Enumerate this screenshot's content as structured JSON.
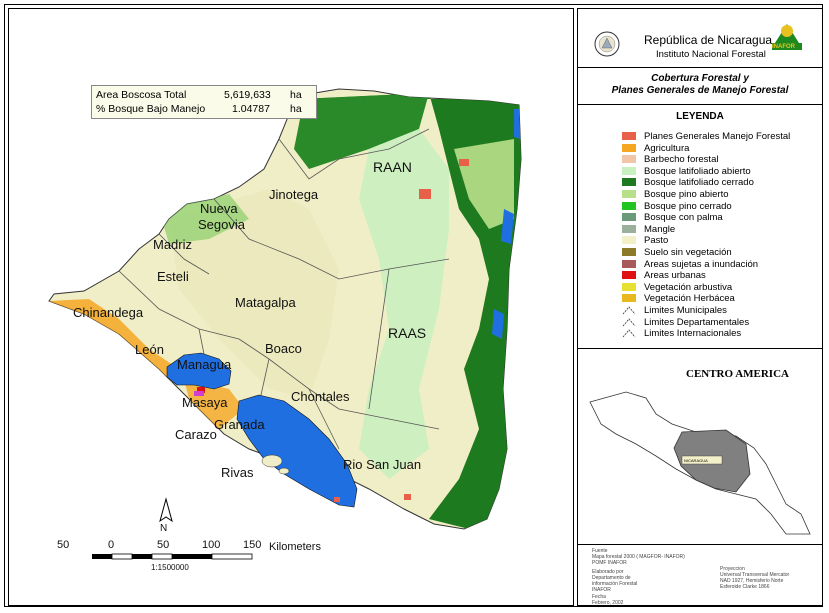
{
  "header": {
    "country": "República de Nicaragua",
    "institute": "Instituto Nacional Forestal",
    "logo_text": "INAFOR"
  },
  "subtitle": {
    "line1": "Cobertura Forestal y",
    "line2": "Planes Generales de Manejo Forestal"
  },
  "area_box": {
    "row1": {
      "label": "Area Boscosa Total",
      "value": "5,619,633",
      "unit": "ha"
    },
    "row2": {
      "label": "% Bosque Bajo Manejo",
      "value": "1.04787",
      "unit": "ha"
    }
  },
  "legend": {
    "title": "LEYENDA",
    "items": [
      {
        "label": "Planes Generales Manejo Forestal",
        "color": "#e8604a"
      },
      {
        "label": "Agricultura",
        "color": "#f5a623"
      },
      {
        "label": "Barbecho forestal",
        "color": "#f2c4a8"
      },
      {
        "label": "Bosque latifoliado abierto",
        "color": "#c8f0c0"
      },
      {
        "label": "Bosque latifoliado cerrado",
        "color": "#1e7a1e"
      },
      {
        "label": "Bosque pino abierto",
        "color": "#b8e08a"
      },
      {
        "label": "Bosque pino cerrado",
        "color": "#22c422"
      },
      {
        "label": "Bosque con palma",
        "color": "#6a9a7a"
      },
      {
        "label": "Mangle",
        "color": "#9ab09a"
      },
      {
        "label": "Pasto",
        "color": "#f2f0c8"
      },
      {
        "label": "Suelo sin vegetación",
        "color": "#8a7a2a"
      },
      {
        "label": "Areas sujetas a inundación",
        "color": "#a85a5a"
      },
      {
        "label": "Areas urbanas",
        "color": "#e01010"
      },
      {
        "label": "Vegetación arbustiva",
        "color": "#e8e030"
      },
      {
        "label": "Vegetación Herbácea",
        "color": "#e8b820"
      },
      {
        "label": "Limites Municipales",
        "color": "none"
      },
      {
        "label": "Limites Departamentales",
        "color": "none"
      },
      {
        "label": "Limites Internacionales",
        "color": "none"
      }
    ]
  },
  "map_labels": {
    "raan": "RAAN",
    "jinotega": "Jinotega",
    "nueva": "Nueva",
    "segovia": "Segovia",
    "madriz": "Madriz",
    "esteli": "Esteli",
    "matagalpa": "Matagalpa",
    "chinandega": "Chinandega",
    "leon": "León",
    "managua": "Managua",
    "boaco": "Boaco",
    "raas": "RAAS",
    "masaya": "Masaya",
    "chontales": "Chontales",
    "granada": "Granada",
    "carazo": "Carazo",
    "rivas": "Rivas",
    "rio_san_juan": "Rio San Juan"
  },
  "scale": {
    "ticks": [
      "50",
      "0",
      "50",
      "100",
      "150"
    ],
    "unit": "Kilometers",
    "ratio": "1:1500000",
    "north": "N"
  },
  "central_america": {
    "title": "CENTRO AMERICA",
    "highlight_label": "NICARAGUA",
    "highlight_color": "#808080"
  },
  "footer": {
    "fuente_title": "Fuente",
    "fuente_1": "Mapa forestal 2000 ( MAGFOR- INAFOR)",
    "fuente_2": "POMF INAFOR",
    "elaborado_1": "Elaborado por",
    "elaborado_2": "Departamento de",
    "elaborado_3": "información Forestal",
    "elaborado_4": "INAFOR",
    "fecha_1": "Fecha",
    "fecha_2": "Febrero, 2002",
    "proy_1": "Proyeccion",
    "proy_2": "Universal Transversal Mercator",
    "proy_3": "NAD 1927, Hemisferio Norte",
    "proy_4": "Esferoide Clarke 1866"
  }
}
